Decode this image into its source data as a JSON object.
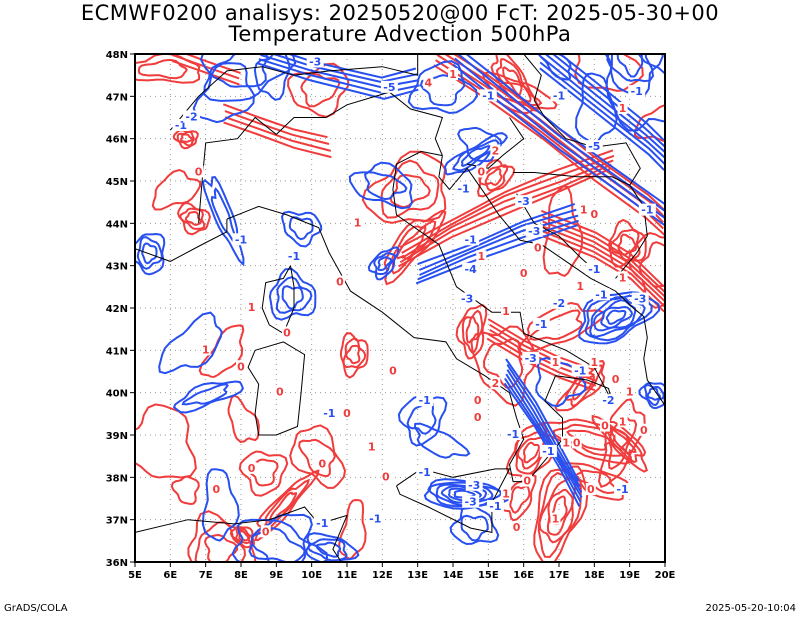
{
  "title_line1": "ECMWF0200 analisys: 20250520@00 FcT: 2025-05-30+00",
  "title_line2": "Temperature Advection 500hPa",
  "map": {
    "lon_range": [
      5,
      20
    ],
    "lat_range": [
      36,
      48
    ],
    "x_ticks": [
      "5E",
      "6E",
      "7E",
      "8E",
      "9E",
      "10E",
      "11E",
      "12E",
      "13E",
      "14E",
      "15E",
      "16E",
      "17E",
      "18E",
      "19E",
      "20E"
    ],
    "y_ticks": [
      "36N",
      "37N",
      "38N",
      "39N",
      "40N",
      "41N",
      "42N",
      "43N",
      "44N",
      "45N",
      "46N",
      "47N",
      "48N"
    ],
    "grid": "dotted",
    "colors": {
      "warm_advection": "#f03c3c",
      "cold_advection": "#2850f0",
      "coast": "#000000"
    },
    "contour_labels": [
      {
        "text": "0",
        "lon": 6.8,
        "lat": 45.2,
        "c": "warm"
      },
      {
        "text": "-1",
        "lon": 6.3,
        "lat": 46.3,
        "c": "cold"
      },
      {
        "text": "-2",
        "lon": 6.6,
        "lat": 46.5,
        "c": "cold"
      },
      {
        "text": "-3",
        "lon": 10.1,
        "lat": 47.8,
        "c": "cold"
      },
      {
        "text": "-5",
        "lon": 12.2,
        "lat": 47.2,
        "c": "cold"
      },
      {
        "text": "4",
        "lon": 13.3,
        "lat": 47.3,
        "c": "warm"
      },
      {
        "text": "1",
        "lon": 14.0,
        "lat": 47.5,
        "c": "warm"
      },
      {
        "text": "-1",
        "lon": 15.0,
        "lat": 47.0,
        "c": "cold"
      },
      {
        "text": "-1",
        "lon": 17.0,
        "lat": 47.0,
        "c": "cold"
      },
      {
        "text": "-1",
        "lon": 19.2,
        "lat": 47.1,
        "c": "cold"
      },
      {
        "text": "1",
        "lon": 18.8,
        "lat": 46.7,
        "c": "warm"
      },
      {
        "text": "-5",
        "lon": 18.0,
        "lat": 45.8,
        "c": "cold"
      },
      {
        "text": "2",
        "lon": 15.2,
        "lat": 45.7,
        "c": "warm"
      },
      {
        "text": "0",
        "lon": 14.8,
        "lat": 45.2,
        "c": "warm"
      },
      {
        "text": "-1",
        "lon": 14.3,
        "lat": 44.8,
        "c": "cold"
      },
      {
        "text": "-3",
        "lon": 16.0,
        "lat": 44.5,
        "c": "cold"
      },
      {
        "text": "1",
        "lon": 17.7,
        "lat": 44.3,
        "c": "warm"
      },
      {
        "text": "0",
        "lon": 18.0,
        "lat": 44.2,
        "c": "warm"
      },
      {
        "text": "-1",
        "lon": 19.5,
        "lat": 44.3,
        "c": "cold"
      },
      {
        "text": "-3",
        "lon": 16.3,
        "lat": 43.8,
        "c": "cold"
      },
      {
        "text": "1",
        "lon": 14.8,
        "lat": 43.2,
        "c": "warm"
      },
      {
        "text": "-4",
        "lon": 14.5,
        "lat": 42.9,
        "c": "cold"
      },
      {
        "text": "0",
        "lon": 16.0,
        "lat": 42.8,
        "c": "warm"
      },
      {
        "text": "-2",
        "lon": 17.0,
        "lat": 42.1,
        "c": "cold"
      },
      {
        "text": "1",
        "lon": 17.6,
        "lat": 42.5,
        "c": "warm"
      },
      {
        "text": "-1",
        "lon": 18.2,
        "lat": 42.3,
        "c": "cold"
      },
      {
        "text": "1",
        "lon": 18.8,
        "lat": 42.7,
        "c": "warm"
      },
      {
        "text": "-3",
        "lon": 19.3,
        "lat": 42.2,
        "c": "cold"
      },
      {
        "text": "-1",
        "lon": 18.0,
        "lat": 42.9,
        "c": "cold"
      },
      {
        "text": "0",
        "lon": 16.4,
        "lat": 43.4,
        "c": "warm"
      },
      {
        "text": "-1",
        "lon": 14.5,
        "lat": 43.6,
        "c": "cold"
      },
      {
        "text": "1",
        "lon": 11.3,
        "lat": 44.0,
        "c": "warm"
      },
      {
        "text": "-1",
        "lon": 8.0,
        "lat": 43.6,
        "c": "cold"
      },
      {
        "text": "-1",
        "lon": 9.5,
        "lat": 43.2,
        "c": "cold"
      },
      {
        "text": "1",
        "lon": 8.3,
        "lat": 42.0,
        "c": "warm"
      },
      {
        "text": "0",
        "lon": 10.8,
        "lat": 42.6,
        "c": "warm"
      },
      {
        "text": "1",
        "lon": 7.0,
        "lat": 41.0,
        "c": "warm"
      },
      {
        "text": "0",
        "lon": 8.0,
        "lat": 40.6,
        "c": "warm"
      },
      {
        "text": "0",
        "lon": 9.3,
        "lat": 41.4,
        "c": "warm"
      },
      {
        "text": "-3",
        "lon": 14.4,
        "lat": 42.2,
        "c": "cold"
      },
      {
        "text": "1",
        "lon": 15.5,
        "lat": 41.9,
        "c": "warm"
      },
      {
        "text": "-1",
        "lon": 16.5,
        "lat": 41.6,
        "c": "cold"
      },
      {
        "text": "-3",
        "lon": 16.2,
        "lat": 40.8,
        "c": "cold"
      },
      {
        "text": "1",
        "lon": 16.9,
        "lat": 40.7,
        "c": "warm"
      },
      {
        "text": "-1",
        "lon": 17.6,
        "lat": 40.5,
        "c": "cold"
      },
      {
        "text": "1",
        "lon": 18.0,
        "lat": 40.7,
        "c": "warm"
      },
      {
        "text": "0",
        "lon": 18.6,
        "lat": 40.3,
        "c": "warm"
      },
      {
        "text": "-2",
        "lon": 18.4,
        "lat": 39.8,
        "c": "cold"
      },
      {
        "text": "1",
        "lon": 19.0,
        "lat": 40.0,
        "c": "warm"
      },
      {
        "text": "2",
        "lon": 15.2,
        "lat": 40.2,
        "c": "warm"
      },
      {
        "text": "0",
        "lon": 14.7,
        "lat": 39.8,
        "c": "warm"
      },
      {
        "text": "0",
        "lon": 14.7,
        "lat": 39.4,
        "c": "warm"
      },
      {
        "text": "-1",
        "lon": 13.2,
        "lat": 39.8,
        "c": "cold"
      },
      {
        "text": "0",
        "lon": 11.0,
        "lat": 39.5,
        "c": "warm"
      },
      {
        "text": "0",
        "lon": 12.3,
        "lat": 40.5,
        "c": "warm"
      },
      {
        "text": "0",
        "lon": 9.1,
        "lat": 40.0,
        "c": "warm"
      },
      {
        "text": "-1",
        "lon": 10.5,
        "lat": 39.5,
        "c": "cold"
      },
      {
        "text": "-1",
        "lon": 15.7,
        "lat": 39.0,
        "c": "cold"
      },
      {
        "text": "-1",
        "lon": 16.7,
        "lat": 38.6,
        "c": "cold"
      },
      {
        "text": "1",
        "lon": 17.2,
        "lat": 38.8,
        "c": "warm"
      },
      {
        "text": "0",
        "lon": 17.5,
        "lat": 38.8,
        "c": "warm"
      },
      {
        "text": "0",
        "lon": 18.3,
        "lat": 39.2,
        "c": "warm"
      },
      {
        "text": "1",
        "lon": 18.8,
        "lat": 39.3,
        "c": "warm"
      },
      {
        "text": "0",
        "lon": 19.4,
        "lat": 39.1,
        "c": "warm"
      },
      {
        "text": "0",
        "lon": 8.3,
        "lat": 38.2,
        "c": "warm"
      },
      {
        "text": "0",
        "lon": 10.3,
        "lat": 38.3,
        "c": "warm"
      },
      {
        "text": "1",
        "lon": 11.7,
        "lat": 38.7,
        "c": "warm"
      },
      {
        "text": "0",
        "lon": 12.1,
        "lat": 38.0,
        "c": "warm"
      },
      {
        "text": "-1",
        "lon": 13.2,
        "lat": 38.1,
        "c": "cold"
      },
      {
        "text": "0",
        "lon": 7.3,
        "lat": 37.7,
        "c": "warm"
      },
      {
        "text": "0",
        "lon": 8.7,
        "lat": 36.7,
        "c": "warm"
      },
      {
        "text": "-1",
        "lon": 10.3,
        "lat": 36.9,
        "c": "cold"
      },
      {
        "text": "-1",
        "lon": 11.8,
        "lat": 37.0,
        "c": "cold"
      },
      {
        "text": "-3",
        "lon": 14.6,
        "lat": 37.8,
        "c": "cold"
      },
      {
        "text": "-3",
        "lon": 14.5,
        "lat": 37.4,
        "c": "cold"
      },
      {
        "text": "1",
        "lon": 15.5,
        "lat": 37.6,
        "c": "warm"
      },
      {
        "text": "0",
        "lon": 16.1,
        "lat": 37.9,
        "c": "warm"
      },
      {
        "text": "-1",
        "lon": 15.2,
        "lat": 37.3,
        "c": "cold"
      },
      {
        "text": "0",
        "lon": 17.9,
        "lat": 37.7,
        "c": "warm"
      },
      {
        "text": "-1",
        "lon": 18.8,
        "lat": 37.7,
        "c": "cold"
      },
      {
        "text": "0",
        "lon": 15.8,
        "lat": 36.8,
        "c": "warm"
      },
      {
        "text": "1",
        "lon": 16.9,
        "lat": 37.0,
        "c": "warm"
      }
    ]
  },
  "footer_left": "GrADS/COLA",
  "footer_right": "2025-05-20-10:04"
}
